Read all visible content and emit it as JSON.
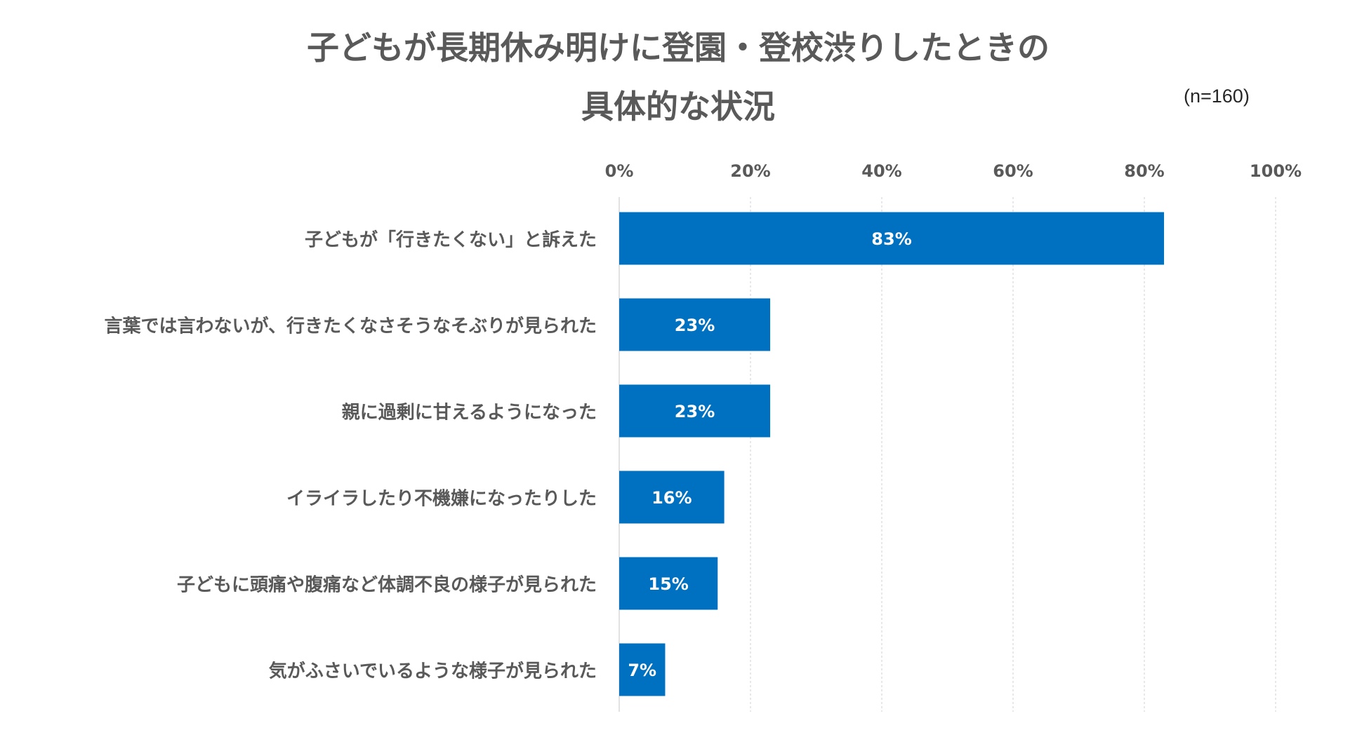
{
  "chart_data": {
    "type": "bar",
    "orientation": "horizontal",
    "title": "子どもが長期休み明けに登園・登校渋りしたときの",
    "title_line2": "具体的な状況",
    "note": "(n=160)",
    "categories": [
      "子どもが「行きたくない」と訴えた",
      "言葉では言わないが、行きたくなさそうなそぶりが見られた",
      "親に過剰に甘えるようになった",
      "イライラしたり不機嫌になったりした",
      "子どもに頭痛や腹痛など体調不良の様子が見られた",
      "気がふさいでいるような様子が見られた"
    ],
    "values": [
      83,
      23,
      23,
      16,
      15,
      7
    ],
    "data_labels": [
      "83%",
      "23%",
      "23%",
      "16%",
      "15%",
      "7%"
    ],
    "xlim": [
      0,
      100
    ],
    "xticks": [
      "0%",
      "20%",
      "40%",
      "60%",
      "80%",
      "100%"
    ],
    "tick_values": [
      0,
      20,
      40,
      60,
      80,
      100
    ],
    "grid": true,
    "bar_color": "#0070C0",
    "xlabel": "",
    "ylabel": ""
  }
}
